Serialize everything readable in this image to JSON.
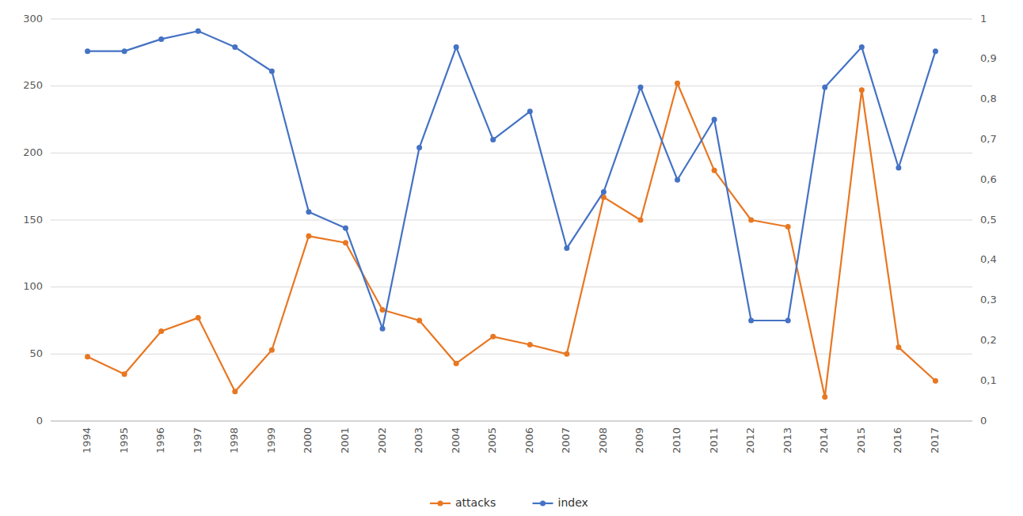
{
  "chart_data": {
    "type": "line",
    "x": [
      1994,
      1995,
      1996,
      1997,
      1998,
      1999,
      2000,
      2001,
      2002,
      2003,
      2004,
      2005,
      2006,
      2007,
      2008,
      2009,
      2010,
      2011,
      2012,
      2013,
      2014,
      2015,
      2016,
      2017
    ],
    "xlim": [
      1993,
      2018
    ],
    "xticks": [
      1994,
      1995,
      1996,
      1997,
      1998,
      1999,
      2000,
      2001,
      2002,
      2003,
      2004,
      2005,
      2006,
      2007,
      2008,
      2009,
      2010,
      2011,
      2012,
      2013,
      2014,
      2015,
      2016,
      2017
    ],
    "series": [
      {
        "name": "attacks",
        "color": "#E87722",
        "marker": "circle",
        "values": [
          48,
          35,
          67,
          77,
          22,
          53,
          138,
          133,
          83,
          75,
          43,
          63,
          57,
          50,
          167,
          150,
          252,
          187,
          150,
          145,
          18,
          247,
          55,
          30
        ]
      },
      {
        "name": "index",
        "color": "#4472C4",
        "marker": "circle",
        "axis": "y2",
        "values": [
          0.92,
          0.92,
          0.95,
          0.97,
          0.93,
          0.87,
          0.52,
          0.48,
          0.23,
          0.68,
          0.93,
          0.7,
          0.77,
          0.43,
          0.57,
          0.83,
          0.6,
          0.75,
          0.25,
          0.25,
          0.83,
          0.93,
          0.63,
          0.92
        ]
      }
    ],
    "ylim": [
      0,
      300
    ],
    "yticks": [
      0,
      50,
      100,
      150,
      200,
      250,
      300
    ],
    "y2lim": [
      0,
      1
    ],
    "y2ticks": [
      0,
      {
        "value": 0.1,
        "label": "0,1"
      },
      {
        "value": 0.2,
        "label": "0,2"
      },
      {
        "value": 0.3,
        "label": "0,3"
      },
      {
        "value": 0.4,
        "label": "0,4"
      },
      {
        "value": 0.5,
        "label": "0,5"
      },
      {
        "value": 0.6,
        "label": "0,6"
      },
      {
        "value": 0.7,
        "label": "0,7"
      },
      {
        "value": 0.8,
        "label": "0,8"
      },
      {
        "value": 0.9,
        "label": "0,9"
      },
      1
    ],
    "grid": true,
    "legend": "bottom"
  }
}
